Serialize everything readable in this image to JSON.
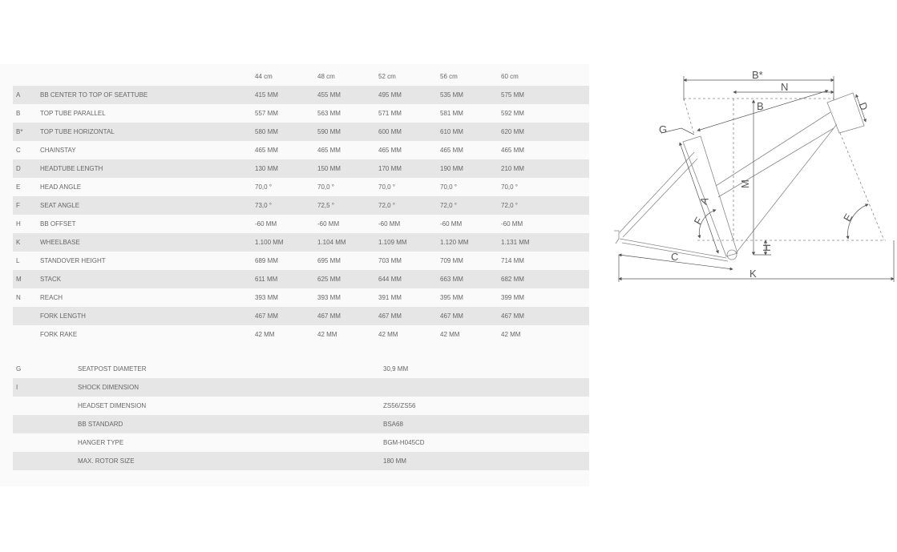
{
  "geometry_table": {
    "sizes": [
      "44 cm",
      "48 cm",
      "52 cm",
      "56 cm",
      "60 cm"
    ],
    "rows": [
      {
        "letter": "A",
        "label": "BB CENTER TO TOP OF SEATTUBE",
        "values": [
          "415 MM",
          "455 MM",
          "495 MM",
          "535 MM",
          "575 MM"
        ]
      },
      {
        "letter": "B",
        "label": "TOP TUBE PARALLEL",
        "values": [
          "557 MM",
          "563 MM",
          "571 MM",
          "581 MM",
          "592 MM"
        ]
      },
      {
        "letter": "B*",
        "label": "TOP TUBE HORIZONTAL",
        "values": [
          "580 MM",
          "590 MM",
          "600 MM",
          "610 MM",
          "620 MM"
        ]
      },
      {
        "letter": "C",
        "label": "CHAINSTAY",
        "values": [
          "465 MM",
          "465 MM",
          "465 MM",
          "465 MM",
          "465 MM"
        ]
      },
      {
        "letter": "D",
        "label": "HEADTUBE LENGTH",
        "values": [
          "130 MM",
          "150 MM",
          "170 MM",
          "190 MM",
          "210 MM"
        ]
      },
      {
        "letter": "E",
        "label": "HEAD ANGLE",
        "values": [
          "70,0 °",
          "70,0 °",
          "70,0 °",
          "70,0 °",
          "70,0 °"
        ]
      },
      {
        "letter": "F",
        "label": "SEAT ANGLE",
        "values": [
          "73,0 °",
          "72,5 °",
          "72,0 °",
          "72,0 °",
          "72,0 °"
        ]
      },
      {
        "letter": "H",
        "label": "BB OFFSET",
        "values": [
          "-60 MM",
          "-60 MM",
          "-60 MM",
          "-60 MM",
          "-60 MM"
        ]
      },
      {
        "letter": "K",
        "label": "WHEELBASE",
        "values": [
          "1.100 MM",
          "1.104 MM",
          "1.109 MM",
          "1.120 MM",
          "1.131 MM"
        ]
      },
      {
        "letter": "L",
        "label": "STANDOVER HEIGHT",
        "values": [
          "689 MM",
          "695 MM",
          "703 MM",
          "709 MM",
          "714 MM"
        ]
      },
      {
        "letter": "M",
        "label": "STACK",
        "values": [
          "611 MM",
          "625 MM",
          "644 MM",
          "663 MM",
          "682 MM"
        ]
      },
      {
        "letter": "N",
        "label": "REACH",
        "values": [
          "393 MM",
          "393 MM",
          "391 MM",
          "395 MM",
          "399 MM"
        ]
      },
      {
        "letter": "",
        "label": "FORK LENGTH",
        "values": [
          "467 MM",
          "467 MM",
          "467 MM",
          "467 MM",
          "467 MM"
        ]
      },
      {
        "letter": "",
        "label": "FORK RAKE",
        "values": [
          "42 MM",
          "42 MM",
          "42 MM",
          "42 MM",
          "42 MM"
        ]
      }
    ]
  },
  "spec_table": {
    "rows": [
      {
        "letter": "G",
        "label": "SEATPOST DIAMETER",
        "value": "30,9 MM"
      },
      {
        "letter": "I",
        "label": "SHOCK DIMENSION",
        "value": ""
      },
      {
        "letter": "",
        "label": "HEADSET DIMENSION",
        "value": "ZS56/ZS56"
      },
      {
        "letter": "",
        "label": "BB STANDARD",
        "value": "BSA68"
      },
      {
        "letter": "",
        "label": "HANGER TYPE",
        "value": "BGM-H045CD"
      },
      {
        "letter": "",
        "label": "MAX. ROTOR SIZE",
        "value": "180 MM"
      }
    ]
  },
  "diagram": {
    "labels": {
      "b_star": "B*",
      "n": "N",
      "b": "B",
      "d": "D",
      "g": "G",
      "m": "M",
      "a": "A",
      "f": "F",
      "e": "E",
      "h": "H",
      "c": "C",
      "k": "K"
    }
  },
  "colors": {
    "row_shade": "#e6e6e6",
    "panel": "#fafafa",
    "text": "#666666",
    "line": "#777777"
  }
}
